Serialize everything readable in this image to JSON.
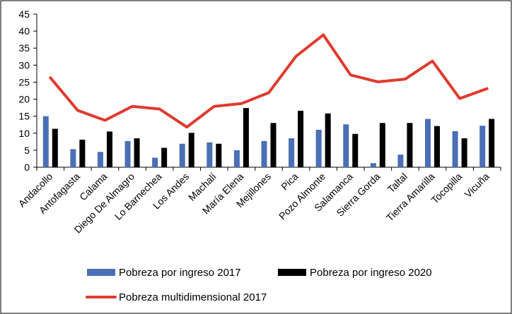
{
  "chart_data": {
    "type": "bar",
    "title": "",
    "xlabel": "",
    "ylabel": "",
    "ylim": [
      0,
      45
    ],
    "yticks": [
      0,
      5,
      10,
      15,
      20,
      25,
      30,
      35,
      40,
      45
    ],
    "grid": false,
    "legend_position": "bottom",
    "categories": [
      "Andacollo",
      "Antofagasta",
      "Calama",
      "Diego De Almagro",
      "Lo Barnechea",
      "Los Andes",
      "Machalí",
      "María Elena",
      "Mejillones",
      "Pica",
      "Pozo Almonte",
      "Salamanca",
      "Sierra Gorda",
      "Taltal",
      "Tierra Amarilla",
      "Tocopilla",
      "Vicuña"
    ],
    "series": [
      {
        "name": "Pobreza por ingreso 2017",
        "type": "bar",
        "color": "#4a6fb5",
        "values": [
          15.0,
          5.3,
          4.5,
          7.7,
          2.8,
          6.9,
          7.3,
          5.0,
          7.7,
          8.5,
          11.0,
          12.6,
          1.2,
          3.7,
          14.2,
          10.6,
          12.2
        ]
      },
      {
        "name": "Pobreza por ingreso 2020",
        "type": "bar",
        "color": "#000000",
        "values": [
          11.3,
          8.1,
          10.5,
          8.5,
          5.7,
          10.1,
          6.9,
          17.4,
          13.0,
          16.6,
          15.8,
          9.8,
          13.0,
          13.0,
          12.1,
          8.5,
          14.2
        ]
      },
      {
        "name": "Pobreza multidimensional 2017",
        "type": "line",
        "color": "#e03a2f",
        "values": [
          26.3,
          16.7,
          13.8,
          17.9,
          17.1,
          11.8,
          17.9,
          18.7,
          21.9,
          32.6,
          38.9,
          27.1,
          25.1,
          25.9,
          31.2,
          20.2,
          23.1
        ]
      }
    ]
  }
}
